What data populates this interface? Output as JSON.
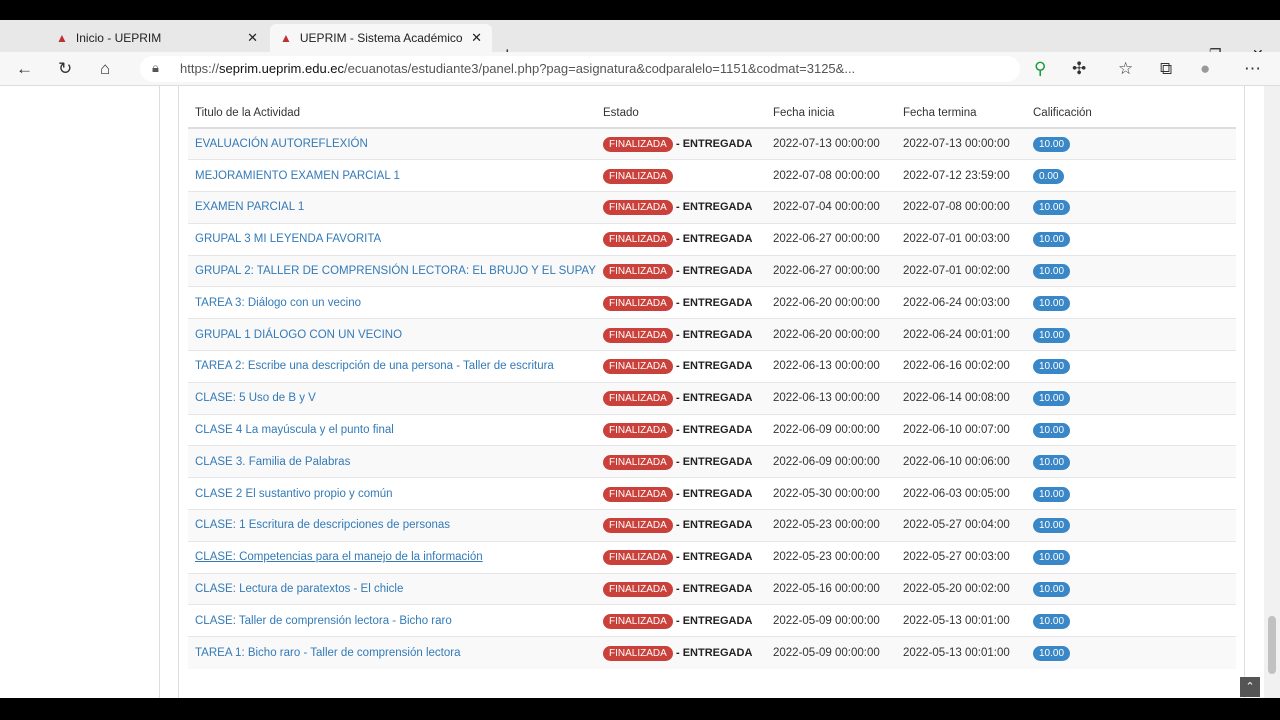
{
  "browser": {
    "tabs": [
      {
        "title": "Inicio - UEPRIM",
        "active": false
      },
      {
        "title": "UEPRIM - Sistema Académico",
        "active": true
      }
    ],
    "url_prefix": "https://",
    "url_domain": "seprim.ueprim.edu.ec",
    "url_rest": "/ecuanotas/estudiante3/panel.php?pag=asignatura&codparalelo=1151&codmat=3125&..."
  },
  "table": {
    "headers": [
      "Titulo de la Actividad",
      "Estado",
      "Fecha inicia",
      "Fecha termina",
      "Calificación"
    ],
    "status_label": "FINALIZADA",
    "delivered_label": "- ENTREGADA",
    "rows": [
      {
        "title": "EVALUACIÓN AUTOREFLEXIÓN",
        "delivered": true,
        "start": "2022-07-13 00:00:00",
        "end": "2022-07-13 00:00:00",
        "grade": "10.00"
      },
      {
        "title": "MEJORAMIENTO EXAMEN PARCIAL 1",
        "delivered": false,
        "start": "2022-07-08 00:00:00",
        "end": "2022-07-12 23:59:00",
        "grade": "0.00"
      },
      {
        "title": "EXAMEN PARCIAL 1",
        "delivered": true,
        "start": "2022-07-04 00:00:00",
        "end": "2022-07-08 00:00:00",
        "grade": "10.00"
      },
      {
        "title": "GRUPAL 3 MI LEYENDA FAVORITA",
        "delivered": true,
        "start": "2022-06-27 00:00:00",
        "end": "2022-07-01 00:03:00",
        "grade": "10.00"
      },
      {
        "title": "GRUPAL 2: TALLER DE COMPRENSIÓN LECTORA: EL BRUJO Y EL SUPAY",
        "delivered": true,
        "start": "2022-06-27 00:00:00",
        "end": "2022-07-01 00:02:00",
        "grade": "10.00"
      },
      {
        "title": "TAREA 3: Diálogo con un vecino",
        "delivered": true,
        "start": "2022-06-20 00:00:00",
        "end": "2022-06-24 00:03:00",
        "grade": "10.00"
      },
      {
        "title": "GRUPAL 1 DIÁLOGO CON UN VECINO",
        "delivered": true,
        "start": "2022-06-20 00:00:00",
        "end": "2022-06-24 00:01:00",
        "grade": "10.00"
      },
      {
        "title": "TAREA 2: Escribe una descripción de una persona - Taller de escritura",
        "delivered": true,
        "start": "2022-06-13 00:00:00",
        "end": "2022-06-16 00:02:00",
        "grade": "10.00"
      },
      {
        "title": "CLASE: 5 Uso de B y V",
        "delivered": true,
        "start": "2022-06-13 00:00:00",
        "end": "2022-06-14 00:08:00",
        "grade": "10.00"
      },
      {
        "title": "CLASE 4 La mayúscula y el punto final",
        "delivered": true,
        "start": "2022-06-09 00:00:00",
        "end": "2022-06-10 00:07:00",
        "grade": "10.00"
      },
      {
        "title": "CLASE 3. Familia de Palabras",
        "delivered": true,
        "start": "2022-06-09 00:00:00",
        "end": "2022-06-10 00:06:00",
        "grade": "10.00"
      },
      {
        "title": "CLASE 2 El sustantivo propio y común",
        "delivered": true,
        "start": "2022-05-30 00:00:00",
        "end": "2022-06-03 00:05:00",
        "grade": "10.00"
      },
      {
        "title": "CLASE: 1 Escritura de descripciones de personas",
        "delivered": true,
        "start": "2022-05-23 00:00:00",
        "end": "2022-05-27 00:04:00",
        "grade": "10.00"
      },
      {
        "title": "CLASE: Competencias para el manejo de la información",
        "delivered": true,
        "start": "2022-05-23 00:00:00",
        "end": "2022-05-27 00:03:00",
        "grade": "10.00",
        "hover": true
      },
      {
        "title": "CLASE: Lectura de paratextos - El chicle",
        "delivered": true,
        "start": "2022-05-16 00:00:00",
        "end": "2022-05-20 00:02:00",
        "grade": "10.00"
      },
      {
        "title": "CLASE: Taller de comprensión lectora - Bicho raro",
        "delivered": true,
        "start": "2022-05-09 00:00:00",
        "end": "2022-05-13 00:01:00",
        "grade": "10.00"
      },
      {
        "title": "TAREA 1: Bicho raro - Taller de comprensión lectora",
        "delivered": true,
        "start": "2022-05-09 00:00:00",
        "end": "2022-05-13 00:01:00",
        "grade": "10.00"
      }
    ]
  }
}
